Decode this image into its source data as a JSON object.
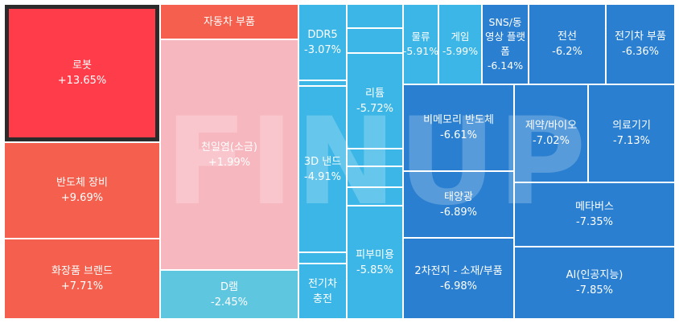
{
  "colors": {
    "selected_border": "#2b2b2b",
    "strong_up": "#ff3d4a",
    "up": "#f4604d",
    "slight_up": "#f7b7be",
    "light_down": "#5fc6e0",
    "down": "#3bb6e6",
    "strong_down": "#2a7fd0"
  },
  "watermark": "FINUP",
  "tiles": {
    "robot": {
      "name": "로봇",
      "change": "+13.65%"
    },
    "semi_equip": {
      "name": "반도체 장비",
      "change": "+9.69%"
    },
    "cosmetics": {
      "name": "화장품 브랜드",
      "change": "+7.71%"
    },
    "auto_parts": {
      "name": "자동차 부품",
      "change": ""
    },
    "salt": {
      "name": "천일염(소금)",
      "change": "+1.99%"
    },
    "dram": {
      "name": "D램",
      "change": "-2.45%"
    },
    "ddr5": {
      "name": "DDR5",
      "change": "-3.07%"
    },
    "nand": {
      "name": "3D 낸드",
      "change": "-4.91%"
    },
    "ev_charging": {
      "name": "전기차 충전",
      "change": ""
    },
    "lithium": {
      "name": "리튬",
      "change": "-5.72%"
    },
    "skincare": {
      "name": "피부미용",
      "change": "-5.85%"
    },
    "logistics": {
      "name": "물류",
      "change": "-5.91%"
    },
    "game": {
      "name": "게임",
      "change": "-5.99%"
    },
    "sns": {
      "name": "SNS/동영상 플랫폼",
      "change": "-6.14%"
    },
    "wire": {
      "name": "전선",
      "change": "-6.2%"
    },
    "ev_parts": {
      "name": "전기차 부품",
      "change": "-6.36%"
    },
    "nonmemory": {
      "name": "비메모리 반도체",
      "change": "-6.61%"
    },
    "pharma": {
      "name": "제약/바이오",
      "change": "-7.02%"
    },
    "medical": {
      "name": "의료기기",
      "change": "-7.13%"
    },
    "solar": {
      "name": "태양광",
      "change": "-6.89%"
    },
    "metaverse": {
      "name": "메타버스",
      "change": "-7.35%"
    },
    "battery": {
      "name": "2차전지 - 소재/부품",
      "change": "-6.98%"
    },
    "ai": {
      "name": "AI(인공지능)",
      "change": "-7.85%"
    }
  }
}
